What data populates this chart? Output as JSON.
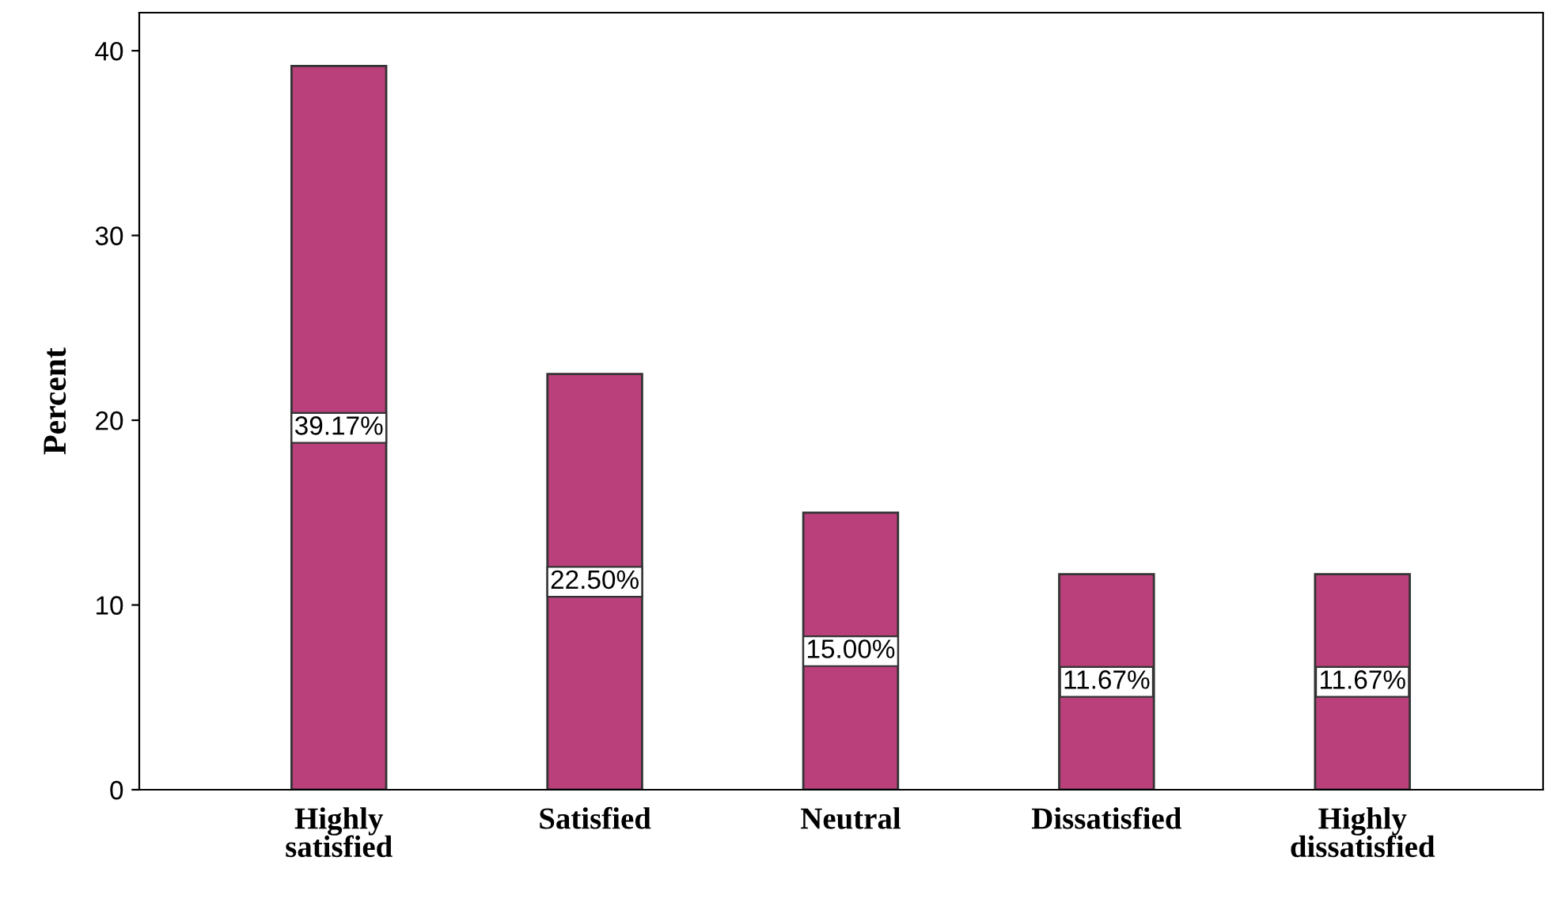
{
  "chart_data": {
    "type": "bar",
    "ylabel": "Percent",
    "categories": [
      "Highly\nsatisfied",
      "Satisfied",
      "Neutral",
      "Dissatisfied",
      "Highly\ndissatisfied"
    ],
    "values": [
      39.17,
      22.5,
      15.0,
      11.67,
      11.67
    ],
    "value_labels": [
      "39.17%",
      "22.50%",
      "15.00%",
      "11.67%",
      "11.67%"
    ],
    "color": "#b9407a",
    "ylim": [
      0,
      42.06
    ],
    "yticks": [
      0,
      10,
      20,
      30,
      40
    ],
    "grid": false
  }
}
